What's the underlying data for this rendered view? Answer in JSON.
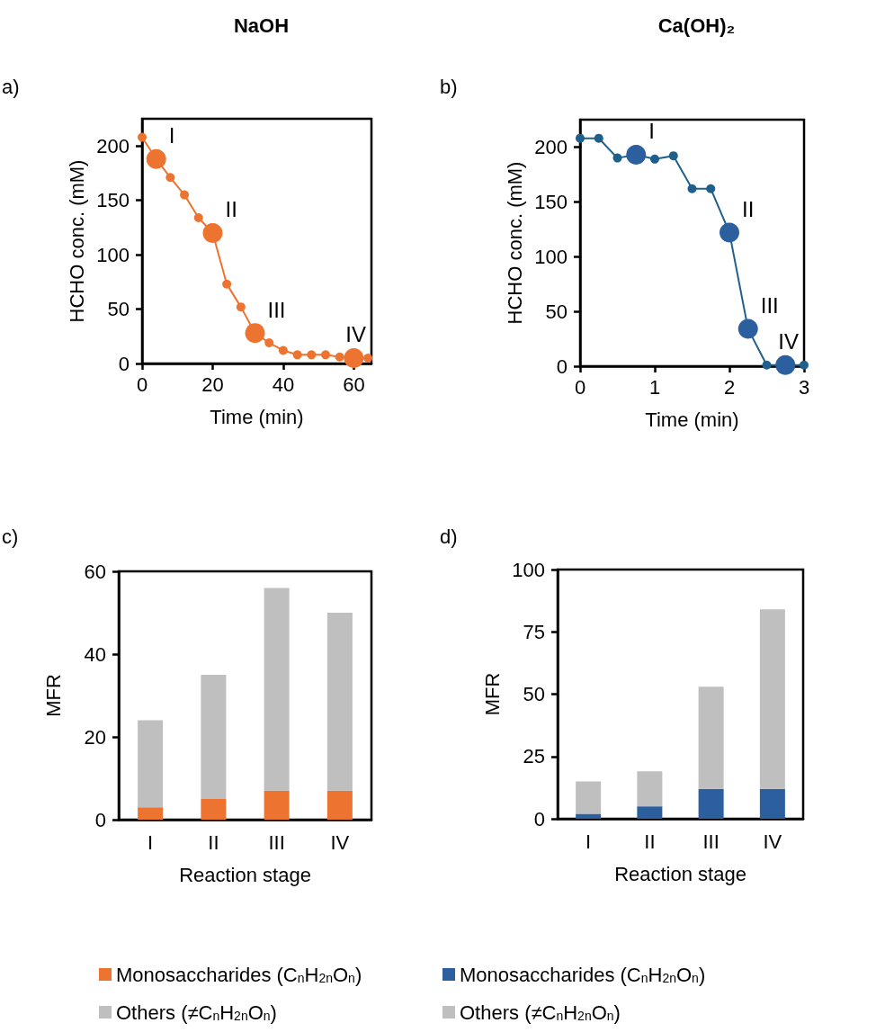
{
  "chart_data": [
    {
      "type": "line",
      "title": "NaOH",
      "xlabel": "Time (min)",
      "ylabel": "HCHO conc. (mM)",
      "xlim": [
        0,
        65
      ],
      "xticks": [
        0,
        20,
        40,
        60
      ],
      "ylim": [
        0,
        225
      ],
      "yticks": [
        0,
        50,
        100,
        150,
        200
      ],
      "marker": "circle",
      "line_style": "solid",
      "grid": false,
      "legend": false,
      "series": [
        {
          "type": "line",
          "color": "#ed7330",
          "x": [
            0,
            4,
            8,
            12,
            16,
            20,
            24,
            28,
            32,
            36,
            40,
            44,
            48,
            52,
            56,
            60,
            64
          ],
          "values": [
            208,
            188,
            171,
            155,
            134,
            120,
            73,
            52,
            28,
            19,
            12,
            8,
            8,
            8,
            6,
            5,
            5
          ]
        },
        {
          "type": "scatter",
          "color": "#ed7330",
          "x": [
            4,
            20,
            32,
            60
          ],
          "values": [
            188,
            120,
            28,
            5
          ]
        }
      ],
      "annotations": [
        "a)",
        {
          "text": "I",
          "x": 4,
          "y": 188
        },
        {
          "text": "II",
          "x": 20,
          "y": 120
        },
        {
          "text": "III",
          "x": 32,
          "y": 28
        },
        {
          "text": "IV",
          "x": 60,
          "y": 5
        }
      ]
    },
    {
      "type": "line",
      "title": "Ca(OH)₂",
      "xlabel": "Time (min)",
      "ylabel": "HCHO conc. (mM)",
      "xlim": [
        0,
        3
      ],
      "xticks": [
        0,
        1,
        2,
        3
      ],
      "ylim": [
        0,
        225
      ],
      "yticks": [
        0,
        50,
        100,
        150,
        200
      ],
      "marker": "circle",
      "line_style": "solid",
      "grid": false,
      "legend": false,
      "series": [
        {
          "type": "line",
          "color": "#1f5f8b",
          "x": [
            0,
            0.25,
            0.5,
            0.75,
            1,
            1.25,
            1.5,
            1.75,
            2,
            2.25,
            2.5,
            2.75,
            3
          ],
          "values": [
            208,
            208,
            190,
            193,
            189,
            192,
            162,
            162,
            122,
            34,
            1,
            1,
            1
          ]
        },
        {
          "type": "scatter",
          "color": "#2b5f9e",
          "x": [
            0.75,
            2,
            2.25,
            2.75
          ],
          "values": [
            193,
            122,
            34,
            1
          ]
        }
      ],
      "annotations": [
        "b)",
        {
          "text": "I",
          "x": 0.75,
          "y": 193
        },
        {
          "text": "II",
          "x": 2,
          "y": 122
        },
        {
          "text": "III",
          "x": 2.25,
          "y": 34
        },
        {
          "text": "IV",
          "x": 2.75,
          "y": 1
        }
      ]
    },
    {
      "type": "bar",
      "stacked": true,
      "xlabel": "Reaction stage",
      "ylabel": "MFR",
      "categories": [
        "I",
        "II",
        "III",
        "IV"
      ],
      "ylim": [
        0,
        60
      ],
      "yticks": [
        0,
        20,
        40,
        60
      ],
      "grid": false,
      "legend": "bottom",
      "series": [
        {
          "name": "Monosaccharides (C$_{n}$H$_{2n}$O$_{n}$)",
          "color": "#ed7330",
          "values": [
            3,
            5,
            7,
            7
          ]
        },
        {
          "name": "Others (≠C$_{n}$H$_{2n}$O$_{n}$)",
          "color": "#bfbfbf",
          "values": [
            21,
            30,
            49,
            43
          ]
        }
      ],
      "annotations": [
        "c)"
      ]
    },
    {
      "type": "bar",
      "stacked": true,
      "xlabel": "Reaction stage",
      "ylabel": "MFR",
      "categories": [
        "I",
        "II",
        "III",
        "IV"
      ],
      "ylim": [
        0,
        100
      ],
      "yticks": [
        0,
        25,
        50,
        75,
        100
      ],
      "grid": false,
      "legend": "bottom",
      "series": [
        {
          "name": "Monosaccharides (C$_{n}$H$_{2n}$O$_{n}$)",
          "color": "#2b5f9e",
          "values": [
            2,
            5,
            12,
            12
          ]
        },
        {
          "name": "Others (≠C$_{n}$H$_{2n}$O$_{n}$)",
          "color": "#bfbfbf",
          "values": [
            13,
            14,
            41,
            72
          ]
        }
      ],
      "annotations": [
        "d)"
      ]
    }
  ]
}
